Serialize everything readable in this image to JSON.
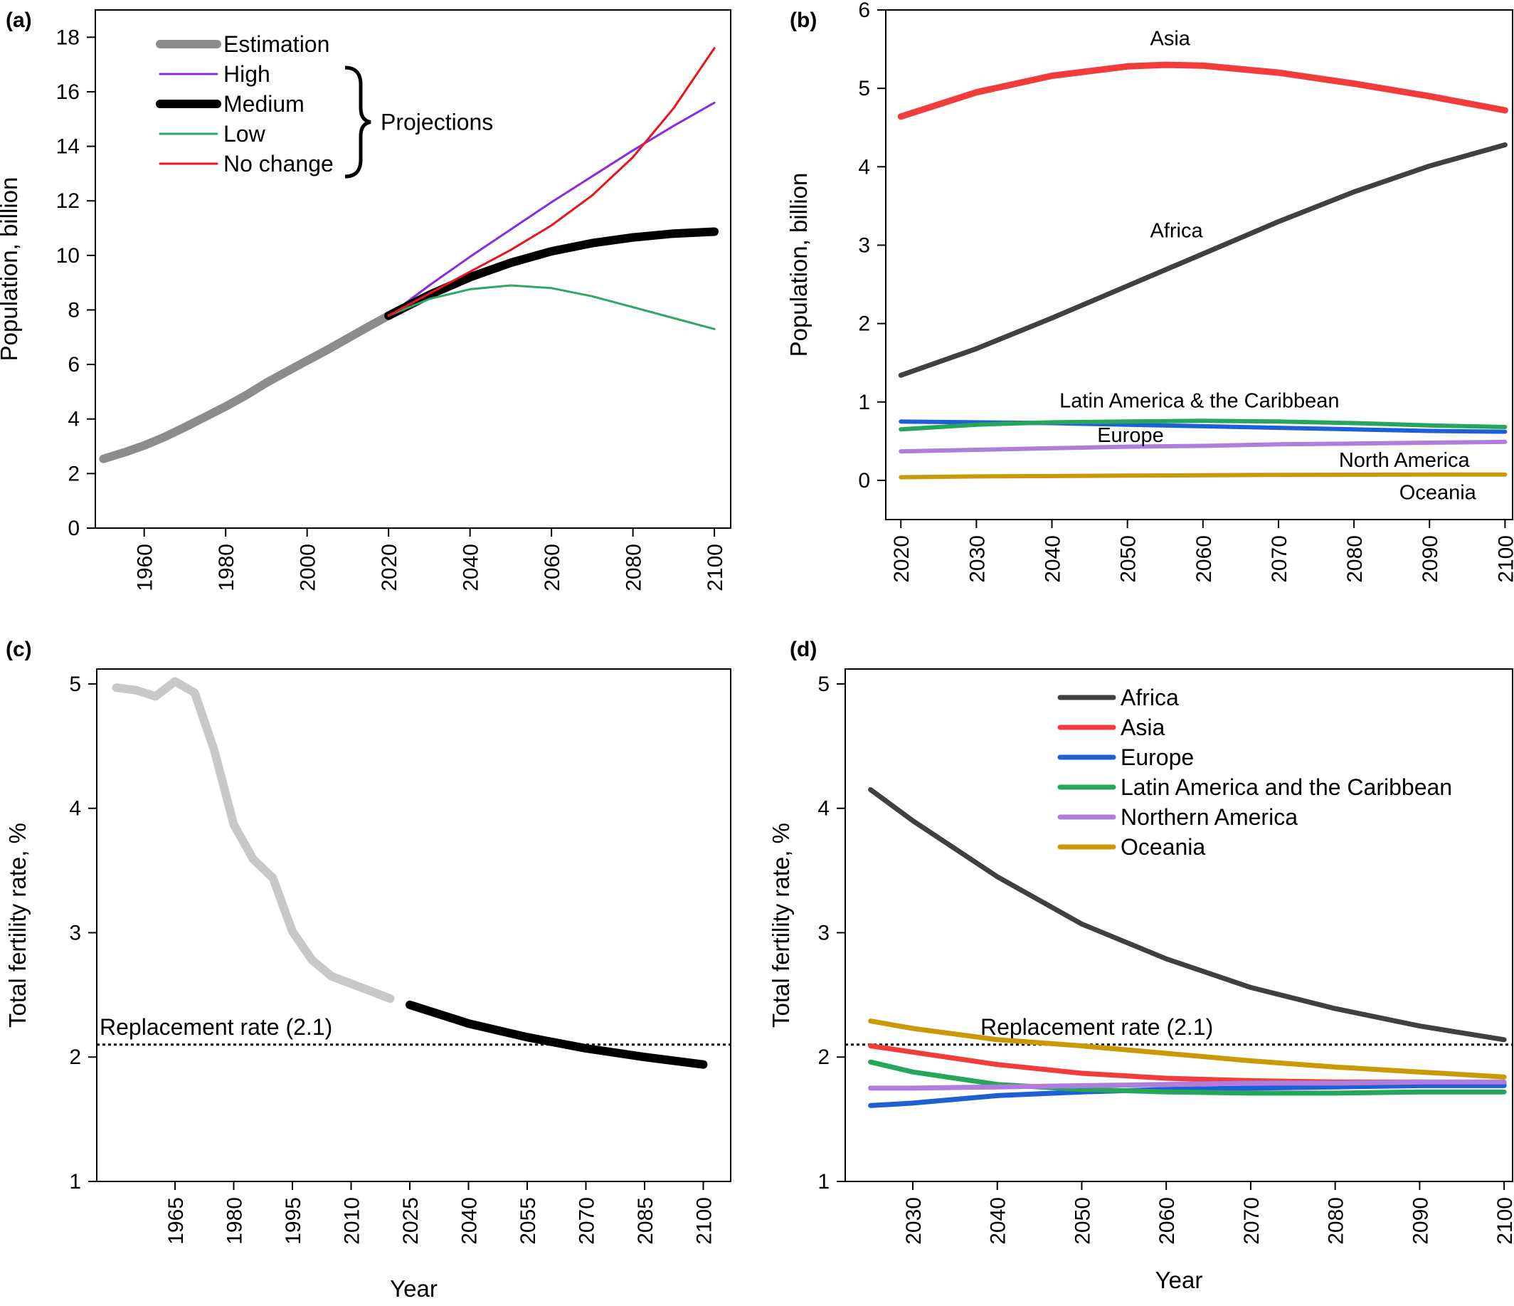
{
  "colors": {
    "estimation": "#8c8c8c",
    "high": "#8a2be2",
    "medium": "#000000",
    "low": "#2ea866",
    "no_change": "#e8141e",
    "africa": "#404040",
    "asia": "#f23c3c",
    "europe": "#1f5fd6",
    "latin_america": "#26a65b",
    "north_america": "#b07ddc",
    "oceania": "#c99a06",
    "fertility_estimation": "#c8c8c8",
    "fertility_projection": "#000000"
  },
  "chart_data": [
    {
      "id": "a",
      "panel_label": "(a)",
      "type": "line",
      "ylabel": "Population, billion",
      "xlabel": "",
      "xlim": [
        1948,
        2104
      ],
      "ylim": [
        0,
        19
      ],
      "x_ticks": [
        1960,
        1980,
        2000,
        2020,
        2040,
        2060,
        2080,
        2100
      ],
      "y_ticks": [
        0,
        2,
        4,
        6,
        8,
        10,
        12,
        14,
        16,
        18
      ],
      "legend": {
        "entries": [
          "Estimation",
          "High",
          "Medium",
          "Low",
          "No change"
        ],
        "brace_label": "Projections",
        "placement": "top-left"
      },
      "series": [
        {
          "name": "Estimation",
          "color_key": "estimation",
          "width": 12,
          "x": [
            1950,
            1955,
            1960,
            1965,
            1970,
            1975,
            1980,
            1985,
            1990,
            1995,
            2000,
            2005,
            2010,
            2015,
            2020
          ],
          "y": [
            2.54,
            2.77,
            3.03,
            3.34,
            3.7,
            4.08,
            4.46,
            4.87,
            5.33,
            5.74,
            6.14,
            6.54,
            6.96,
            7.38,
            7.79
          ]
        },
        {
          "name": "High",
          "color_key": "high",
          "width": 3,
          "x": [
            2020,
            2030,
            2040,
            2050,
            2060,
            2070,
            2080,
            2090,
            2100
          ],
          "y": [
            7.79,
            8.9,
            9.95,
            10.95,
            11.95,
            12.9,
            13.85,
            14.75,
            15.6
          ]
        },
        {
          "name": "Medium",
          "color_key": "medium",
          "width": 12,
          "x": [
            2020,
            2030,
            2040,
            2050,
            2060,
            2070,
            2080,
            2090,
            2100
          ],
          "y": [
            7.79,
            8.55,
            9.2,
            9.73,
            10.15,
            10.45,
            10.66,
            10.8,
            10.87
          ]
        },
        {
          "name": "Low",
          "color_key": "low",
          "width": 3,
          "x": [
            2020,
            2030,
            2040,
            2050,
            2060,
            2070,
            2080,
            2090,
            2100
          ],
          "y": [
            7.79,
            8.4,
            8.76,
            8.9,
            8.8,
            8.5,
            8.1,
            7.7,
            7.3
          ]
        },
        {
          "name": "No change",
          "color_key": "no_change",
          "width": 3,
          "x": [
            2020,
            2030,
            2040,
            2050,
            2060,
            2070,
            2080,
            2090,
            2100
          ],
          "y": [
            7.79,
            8.6,
            9.4,
            10.2,
            11.1,
            12.2,
            13.6,
            15.4,
            17.6
          ]
        }
      ]
    },
    {
      "id": "b",
      "panel_label": "(b)",
      "type": "line",
      "ylabel": "Population, billion",
      "xlabel": "",
      "xlim": [
        2018,
        2101
      ],
      "ylim": [
        -0.5,
        6
      ],
      "x_ticks": [
        2020,
        2030,
        2040,
        2050,
        2060,
        2070,
        2080,
        2090,
        2100
      ],
      "y_ticks": [
        0,
        1,
        2,
        3,
        4,
        5,
        6
      ],
      "annotations": [
        {
          "text": "Asia",
          "x": 2053,
          "y": 5.55
        },
        {
          "text": "Africa",
          "x": 2053,
          "y": 3.1
        },
        {
          "text": "Latin America & the Caribbean",
          "x": 2041,
          "y": 0.93
        },
        {
          "text": "Europe",
          "x": 2046,
          "y": 0.49
        },
        {
          "text": "North America",
          "x": 2078,
          "y": 0.17
        },
        {
          "text": "Oceania",
          "x": 2086,
          "y": -0.24
        }
      ],
      "series": [
        {
          "name": "Asia",
          "color_key": "asia",
          "width": 9,
          "x": [
            2020,
            2030,
            2040,
            2050,
            2055,
            2060,
            2070,
            2080,
            2090,
            2100
          ],
          "y": [
            4.64,
            4.95,
            5.16,
            5.28,
            5.3,
            5.29,
            5.2,
            5.06,
            4.9,
            4.72
          ]
        },
        {
          "name": "Africa",
          "color_key": "africa",
          "width": 7,
          "x": [
            2020,
            2030,
            2040,
            2050,
            2060,
            2070,
            2080,
            2090,
            2100
          ],
          "y": [
            1.34,
            1.68,
            2.07,
            2.48,
            2.89,
            3.3,
            3.68,
            4.01,
            4.28
          ]
        },
        {
          "name": "Europe",
          "color_key": "europe",
          "width": 6,
          "x": [
            2020,
            2030,
            2040,
            2050,
            2060,
            2070,
            2080,
            2090,
            2100
          ],
          "y": [
            0.75,
            0.74,
            0.73,
            0.71,
            0.69,
            0.67,
            0.65,
            0.63,
            0.62
          ]
        },
        {
          "name": "Latin America & the Caribbean",
          "color_key": "latin_america",
          "width": 6,
          "x": [
            2020,
            2030,
            2040,
            2050,
            2060,
            2070,
            2080,
            2090,
            2100
          ],
          "y": [
            0.65,
            0.71,
            0.74,
            0.75,
            0.76,
            0.75,
            0.73,
            0.7,
            0.68
          ]
        },
        {
          "name": "North America",
          "color_key": "north_america",
          "width": 6,
          "x": [
            2020,
            2030,
            2040,
            2050,
            2060,
            2070,
            2080,
            2090,
            2100
          ],
          "y": [
            0.37,
            0.39,
            0.41,
            0.43,
            0.44,
            0.46,
            0.47,
            0.48,
            0.49
          ]
        },
        {
          "name": "Oceania",
          "color_key": "oceania",
          "width": 6,
          "x": [
            2020,
            2030,
            2040,
            2050,
            2060,
            2070,
            2080,
            2090,
            2100
          ],
          "y": [
            0.04,
            0.05,
            0.055,
            0.06,
            0.065,
            0.07,
            0.072,
            0.074,
            0.075
          ]
        }
      ]
    },
    {
      "id": "c",
      "panel_label": "(c)",
      "type": "line",
      "ylabel": "Total fertility rate, %",
      "xlabel": "Year",
      "xlim": [
        1945,
        2107
      ],
      "ylim": [
        1,
        5.12
      ],
      "x_ticks": [
        1965,
        1980,
        1995,
        2010,
        2025,
        2040,
        2055,
        2070,
        2085,
        2100
      ],
      "y_ticks": [
        1,
        2,
        3,
        4,
        5
      ],
      "reference_line": {
        "y": 2.1,
        "label": "Replacement rate (2.1)"
      },
      "series": [
        {
          "name": "Estimation",
          "color_key": "fertility_estimation",
          "width": 12,
          "x": [
            1950,
            1955,
            1960,
            1965,
            1970,
            1975,
            1980,
            1985,
            1990,
            1995,
            2000,
            2005,
            2010,
            2015,
            2020
          ],
          "y": [
            4.97,
            4.95,
            4.9,
            5.02,
            4.93,
            4.47,
            3.87,
            3.59,
            3.44,
            3.01,
            2.78,
            2.65,
            2.59,
            2.53,
            2.47
          ]
        },
        {
          "name": "Projection",
          "color_key": "fertility_projection",
          "width": 12,
          "x": [
            2025,
            2040,
            2055,
            2070,
            2085,
            2100
          ],
          "y": [
            2.42,
            2.27,
            2.16,
            2.07,
            2.0,
            1.94
          ]
        }
      ]
    },
    {
      "id": "d",
      "panel_label": "(d)",
      "type": "line",
      "ylabel": "Total fertility rate, %",
      "xlabel": "Year",
      "xlim": [
        2022,
        2101
      ],
      "ylim": [
        1,
        5.12
      ],
      "x_ticks": [
        2030,
        2040,
        2050,
        2060,
        2070,
        2080,
        2090,
        2100
      ],
      "y_ticks": [
        1,
        2,
        3,
        4,
        5
      ],
      "reference_line": {
        "y": 2.1,
        "label": "Replacement rate (2.1)"
      },
      "legend": {
        "entries": [
          "Africa",
          "Asia",
          "Europe",
          "Latin America and the Caribbean",
          "Northern America",
          "Oceania"
        ],
        "placement": "top-right"
      },
      "series": [
        {
          "name": "Africa",
          "color_key": "africa",
          "width": 7,
          "x": [
            2025,
            2030,
            2040,
            2050,
            2060,
            2070,
            2080,
            2090,
            2100
          ],
          "y": [
            4.15,
            3.9,
            3.45,
            3.07,
            2.79,
            2.56,
            2.39,
            2.25,
            2.14
          ]
        },
        {
          "name": "Asia",
          "color_key": "asia",
          "width": 7,
          "x": [
            2025,
            2030,
            2040,
            2050,
            2060,
            2070,
            2080,
            2090,
            2100
          ],
          "y": [
            2.09,
            2.04,
            1.94,
            1.87,
            1.83,
            1.81,
            1.8,
            1.8,
            1.79
          ]
        },
        {
          "name": "Europe",
          "color_key": "europe",
          "width": 7,
          "x": [
            2025,
            2030,
            2040,
            2050,
            2060,
            2070,
            2080,
            2090,
            2100
          ],
          "y": [
            1.61,
            1.63,
            1.69,
            1.72,
            1.74,
            1.75,
            1.76,
            1.77,
            1.77
          ]
        },
        {
          "name": "Latin America and the Caribbean",
          "color_key": "latin_america",
          "width": 7,
          "x": [
            2025,
            2030,
            2040,
            2050,
            2060,
            2070,
            2080,
            2090,
            2100
          ],
          "y": [
            1.96,
            1.88,
            1.78,
            1.74,
            1.72,
            1.71,
            1.71,
            1.72,
            1.72
          ]
        },
        {
          "name": "Northern America",
          "color_key": "north_america",
          "width": 7,
          "x": [
            2025,
            2030,
            2040,
            2050,
            2060,
            2070,
            2080,
            2090,
            2100
          ],
          "y": [
            1.75,
            1.75,
            1.76,
            1.77,
            1.78,
            1.79,
            1.79,
            1.8,
            1.8
          ]
        },
        {
          "name": "Oceania",
          "color_key": "oceania",
          "width": 7,
          "x": [
            2025,
            2030,
            2040,
            2050,
            2060,
            2070,
            2080,
            2090,
            2100
          ],
          "y": [
            2.29,
            2.23,
            2.14,
            2.09,
            2.03,
            1.97,
            1.92,
            1.88,
            1.84
          ]
        }
      ]
    }
  ]
}
